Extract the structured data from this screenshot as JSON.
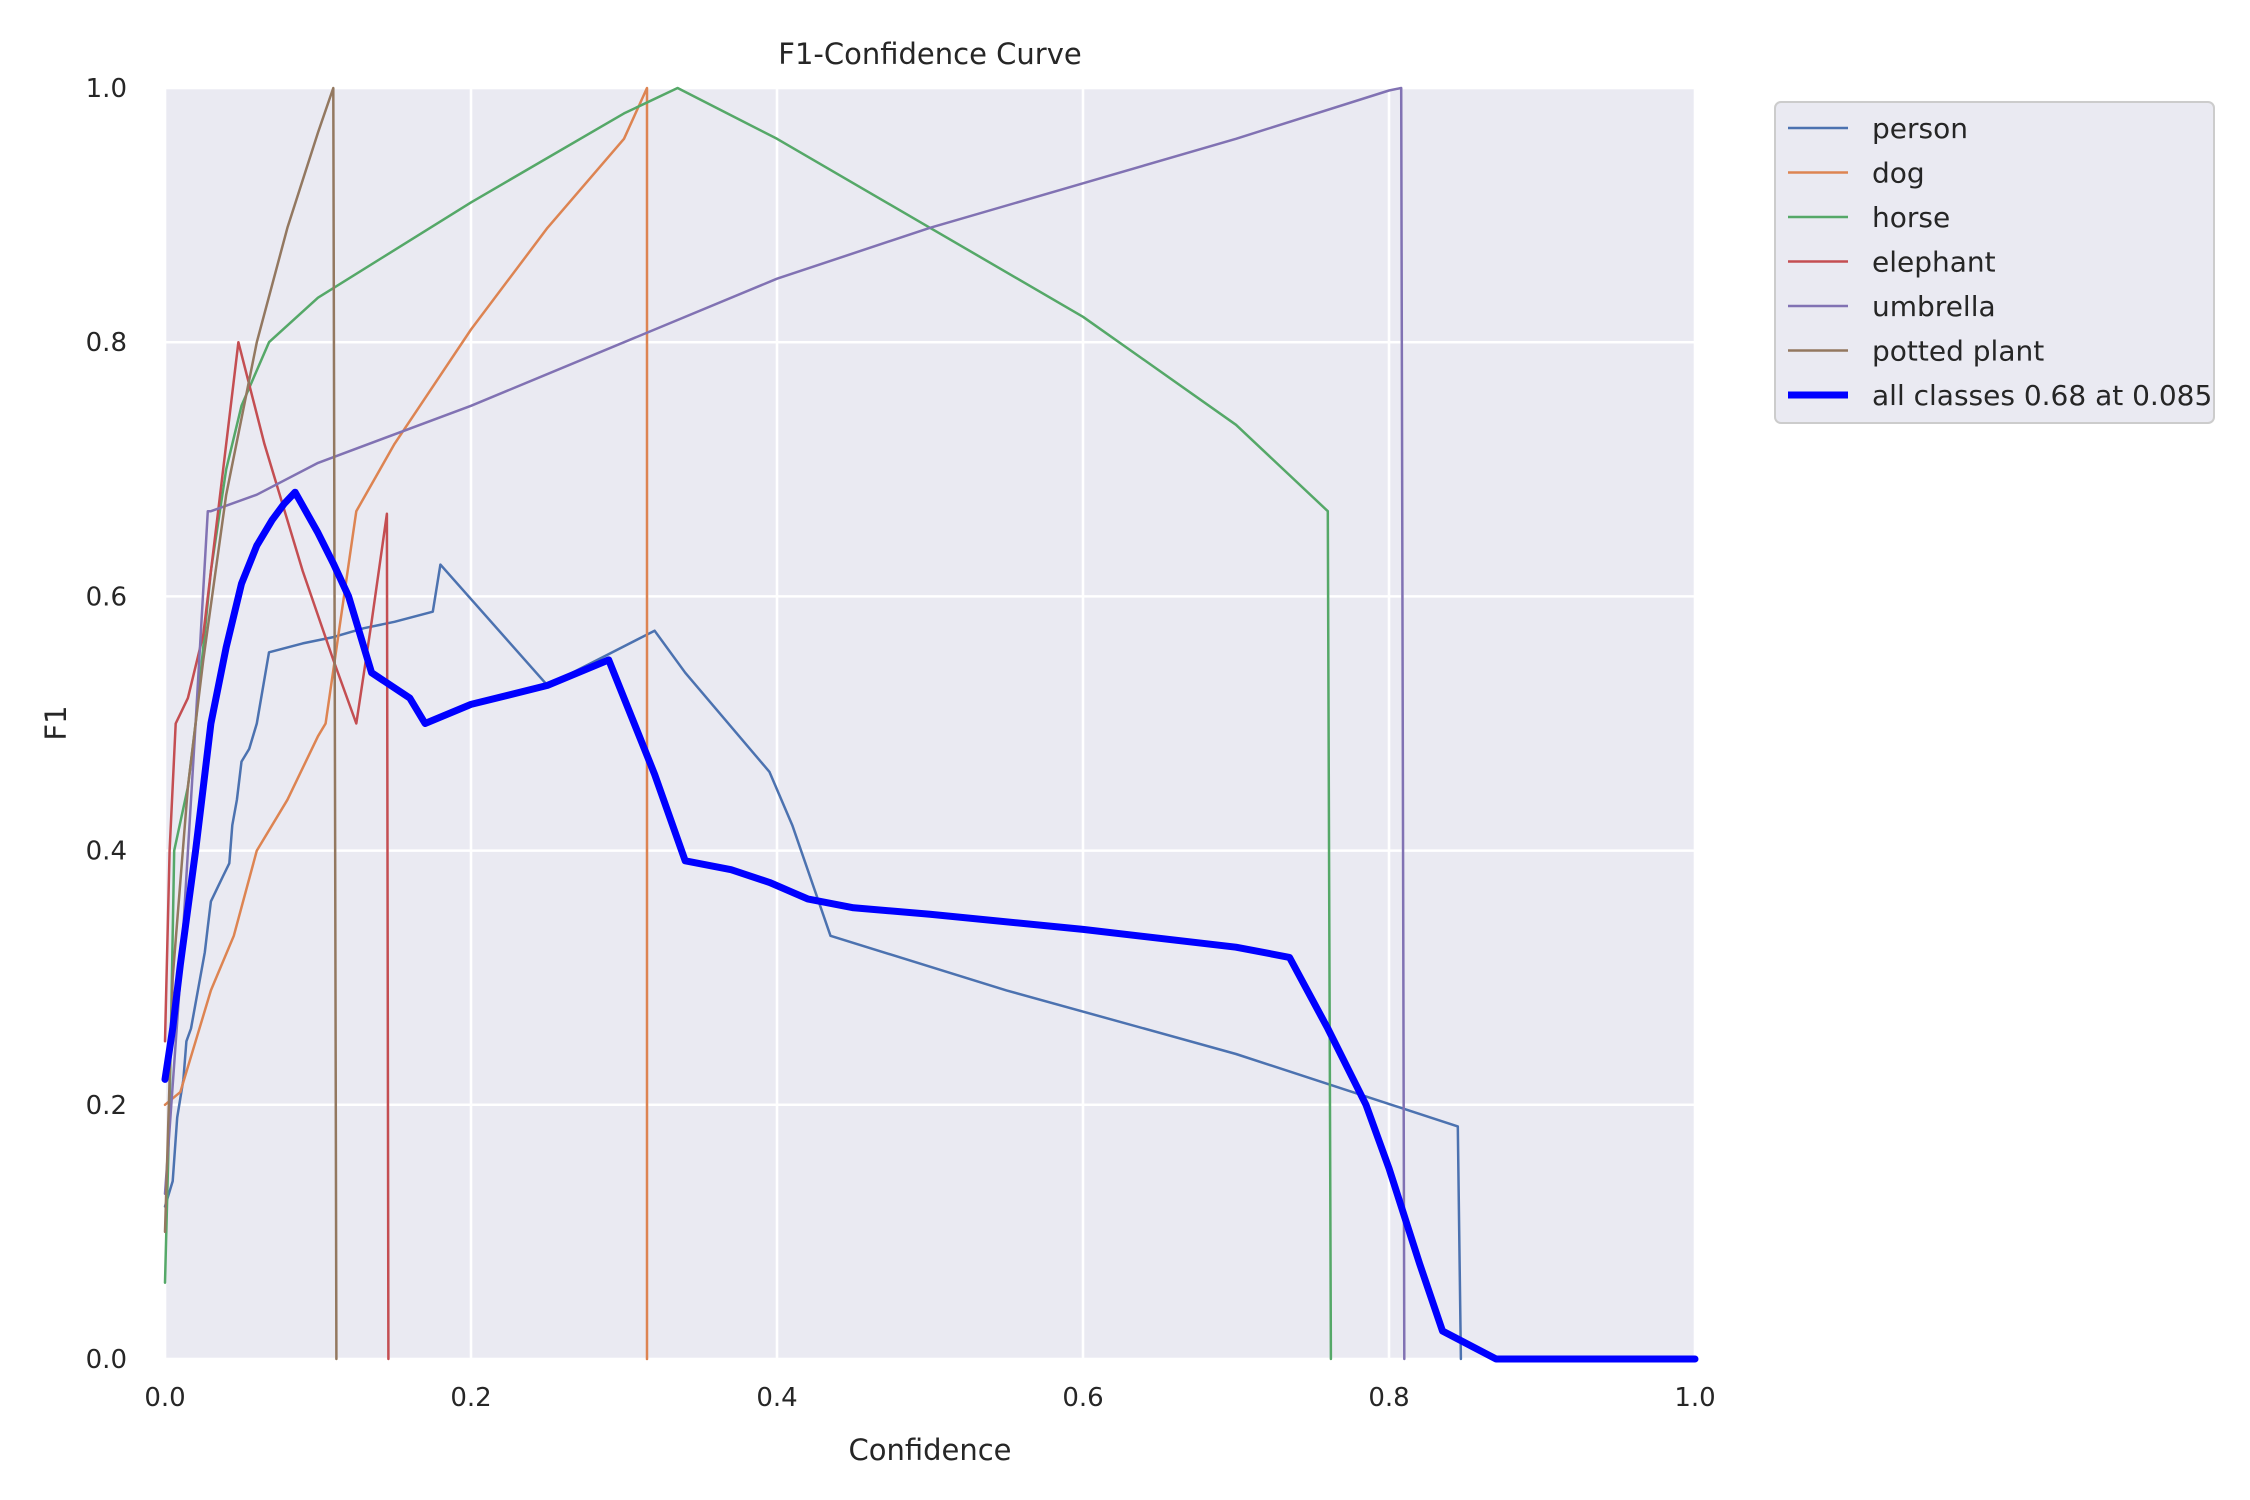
{
  "chart_data": {
    "type": "line",
    "title": "F1-Confidence Curve",
    "xlabel": "Confidence",
    "ylabel": "F1",
    "xlim": [
      0,
      1
    ],
    "ylim": [
      0,
      1
    ],
    "x_ticks": [
      "0.0",
      "0.2",
      "0.4",
      "0.6",
      "0.8",
      "1.0"
    ],
    "y_ticks": [
      "0.0",
      "0.2",
      "0.4",
      "0.6",
      "0.8",
      "1.0"
    ],
    "grid": true,
    "legend_position": "outside-top-right",
    "background": "#eaeaf2",
    "series": [
      {
        "name": "person",
        "color": "#4c72b0",
        "width": 2.5,
        "points": [
          [
            0,
            0.12
          ],
          [
            0.005,
            0.14
          ],
          [
            0.008,
            0.19
          ],
          [
            0.012,
            0.22
          ],
          [
            0.014,
            0.25
          ],
          [
            0.017,
            0.26
          ],
          [
            0.02,
            0.28
          ],
          [
            0.023,
            0.3
          ],
          [
            0.026,
            0.32
          ],
          [
            0.028,
            0.34
          ],
          [
            0.03,
            0.36
          ],
          [
            0.034,
            0.37
          ],
          [
            0.038,
            0.38
          ],
          [
            0.042,
            0.39
          ],
          [
            0.044,
            0.42
          ],
          [
            0.047,
            0.44
          ],
          [
            0.05,
            0.47
          ],
          [
            0.055,
            0.48
          ],
          [
            0.06,
            0.5
          ],
          [
            0.068,
            0.556
          ],
          [
            0.09,
            0.563
          ],
          [
            0.11,
            0.568
          ],
          [
            0.13,
            0.575
          ],
          [
            0.15,
            0.58
          ],
          [
            0.175,
            0.588
          ],
          [
            0.18,
            0.625
          ],
          [
            0.25,
            0.53
          ],
          [
            0.32,
            0.573
          ],
          [
            0.34,
            0.54
          ],
          [
            0.395,
            0.462
          ],
          [
            0.41,
            0.42
          ],
          [
            0.435,
            0.333
          ],
          [
            0.55,
            0.29
          ],
          [
            0.7,
            0.24
          ],
          [
            0.845,
            0.183
          ],
          [
            0.847,
            0
          ]
        ]
      },
      {
        "name": "dog",
        "color": "#dd8452",
        "width": 2.5,
        "points": [
          [
            0,
            0.2
          ],
          [
            0.01,
            0.21
          ],
          [
            0.02,
            0.25
          ],
          [
            0.03,
            0.29
          ],
          [
            0.045,
            0.333
          ],
          [
            0.06,
            0.4
          ],
          [
            0.08,
            0.44
          ],
          [
            0.1,
            0.49
          ],
          [
            0.105,
            0.5
          ],
          [
            0.125,
            0.667
          ],
          [
            0.15,
            0.72
          ],
          [
            0.2,
            0.81
          ],
          [
            0.25,
            0.89
          ],
          [
            0.3,
            0.96
          ],
          [
            0.315,
            1.0
          ],
          [
            0.315,
            0
          ]
        ]
      },
      {
        "name": "horse",
        "color": "#55a868",
        "width": 2.5,
        "points": [
          [
            0,
            0.06
          ],
          [
            0.003,
            0.2
          ],
          [
            0.006,
            0.4
          ],
          [
            0.015,
            0.45
          ],
          [
            0.02,
            0.5
          ],
          [
            0.03,
            0.62
          ],
          [
            0.04,
            0.7
          ],
          [
            0.05,
            0.75
          ],
          [
            0.068,
            0.8
          ],
          [
            0.1,
            0.835
          ],
          [
            0.2,
            0.91
          ],
          [
            0.3,
            0.98
          ],
          [
            0.335,
            1.0
          ],
          [
            0.4,
            0.96
          ],
          [
            0.5,
            0.89
          ],
          [
            0.6,
            0.82
          ],
          [
            0.7,
            0.735
          ],
          [
            0.76,
            0.667
          ],
          [
            0.762,
            0
          ]
        ]
      },
      {
        "name": "elephant",
        "color": "#c44e52",
        "width": 2.5,
        "points": [
          [
            0,
            0.25
          ],
          [
            0.003,
            0.4
          ],
          [
            0.007,
            0.5
          ],
          [
            0.015,
            0.52
          ],
          [
            0.025,
            0.57
          ],
          [
            0.035,
            0.67
          ],
          [
            0.048,
            0.8
          ],
          [
            0.065,
            0.72
          ],
          [
            0.09,
            0.62
          ],
          [
            0.11,
            0.55
          ],
          [
            0.125,
            0.5
          ],
          [
            0.135,
            0.58
          ],
          [
            0.145,
            0.665
          ],
          [
            0.146,
            0
          ]
        ]
      },
      {
        "name": "umbrella",
        "color": "#8172b3",
        "width": 2.5,
        "points": [
          [
            0,
            0.13
          ],
          [
            0.01,
            0.3
          ],
          [
            0.02,
            0.5
          ],
          [
            0.028,
            0.667
          ],
          [
            0.03,
            0.667
          ],
          [
            0.06,
            0.68
          ],
          [
            0.1,
            0.705
          ],
          [
            0.2,
            0.75
          ],
          [
            0.4,
            0.85
          ],
          [
            0.5,
            0.89
          ],
          [
            0.6,
            0.925
          ],
          [
            0.7,
            0.96
          ],
          [
            0.8,
            0.998
          ],
          [
            0.808,
            1.0
          ],
          [
            0.81,
            0
          ]
        ]
      },
      {
        "name": "potted plant",
        "color": "#937860",
        "width": 2.5,
        "points": [
          [
            0,
            0.1
          ],
          [
            0.005,
            0.3
          ],
          [
            0.015,
            0.45
          ],
          [
            0.025,
            0.55
          ],
          [
            0.04,
            0.68
          ],
          [
            0.06,
            0.8
          ],
          [
            0.08,
            0.89
          ],
          [
            0.1,
            0.965
          ],
          [
            0.11,
            1.0
          ],
          [
            0.112,
            0
          ]
        ]
      },
      {
        "name": "all classes 0.68 at 0.085",
        "color": "#0000ff",
        "width": 7,
        "points": [
          [
            0,
            0.22
          ],
          [
            0.005,
            0.26
          ],
          [
            0.01,
            0.31
          ],
          [
            0.02,
            0.4
          ],
          [
            0.025,
            0.45
          ],
          [
            0.03,
            0.5
          ],
          [
            0.04,
            0.56
          ],
          [
            0.05,
            0.61
          ],
          [
            0.06,
            0.64
          ],
          [
            0.07,
            0.66
          ],
          [
            0.078,
            0.673
          ],
          [
            0.085,
            0.682
          ],
          [
            0.1,
            0.65
          ],
          [
            0.11,
            0.626
          ],
          [
            0.12,
            0.6
          ],
          [
            0.135,
            0.54
          ],
          [
            0.16,
            0.52
          ],
          [
            0.17,
            0.5
          ],
          [
            0.2,
            0.515
          ],
          [
            0.25,
            0.53
          ],
          [
            0.29,
            0.55
          ],
          [
            0.32,
            0.46
          ],
          [
            0.34,
            0.392
          ],
          [
            0.37,
            0.385
          ],
          [
            0.395,
            0.375
          ],
          [
            0.42,
            0.362
          ],
          [
            0.45,
            0.355
          ],
          [
            0.5,
            0.35
          ],
          [
            0.6,
            0.338
          ],
          [
            0.7,
            0.324
          ],
          [
            0.735,
            0.316
          ],
          [
            0.76,
            0.26
          ],
          [
            0.785,
            0.2
          ],
          [
            0.8,
            0.15
          ],
          [
            0.82,
            0.075
          ],
          [
            0.835,
            0.022
          ],
          [
            0.87,
            0
          ],
          [
            1.0,
            0
          ]
        ]
      }
    ]
  }
}
